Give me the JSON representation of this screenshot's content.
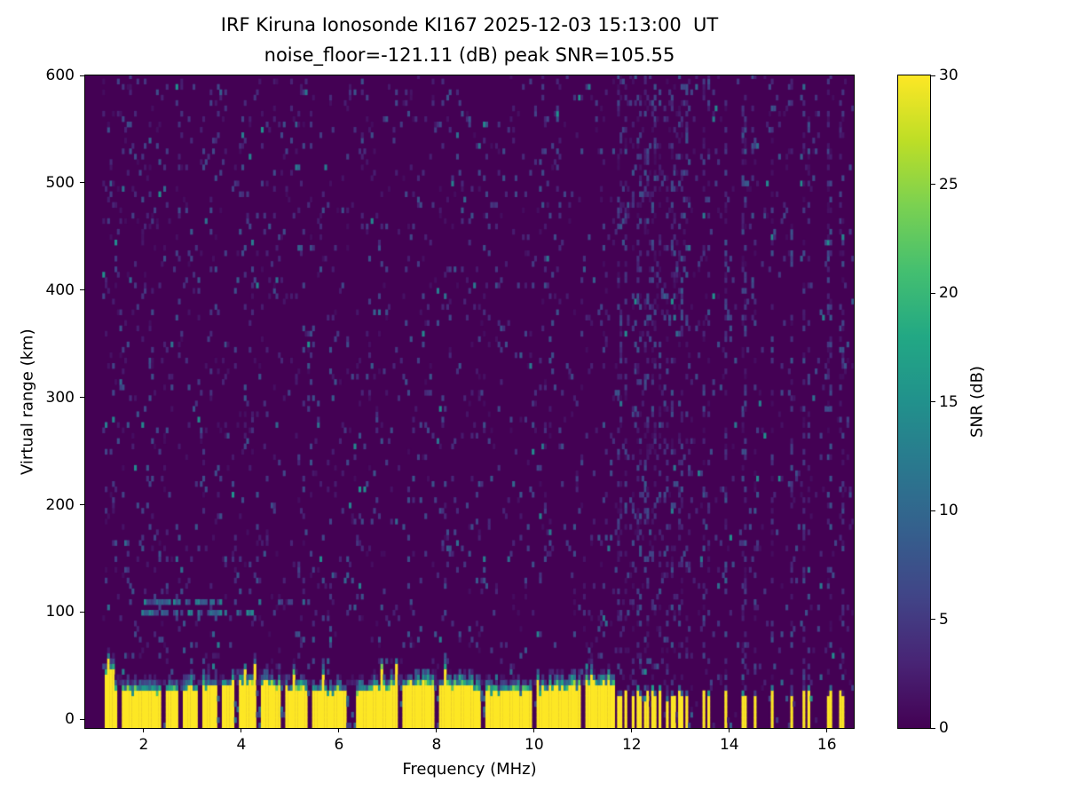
{
  "chart_data": {
    "type": "heatmap",
    "title": "IRF Kiruna Ionosonde KI167 2025-12-03 15:13:00  UT",
    "subtitle": "noise_floor=-121.11 (dB) peak SNR=105.55",
    "observatory": "IRF Kiruna Ionosonde",
    "station": "KI167",
    "timestamp_ut": "2025-12-03 15:13:00",
    "noise_floor_db": -121.11,
    "peak_snr_db": 105.55,
    "xlabel": "Frequency (MHz)",
    "ylabel": "Virtual range (km)",
    "x_range": [
      0.8,
      16.55
    ],
    "y_range": [
      -8,
      600
    ],
    "x_ticks": [
      2,
      4,
      6,
      8,
      10,
      12,
      14,
      16
    ],
    "y_ticks": [
      0,
      100,
      200,
      300,
      400,
      500,
      600
    ],
    "grid": false,
    "colorbar": {
      "label": "SNR (dB)",
      "range": [
        0,
        30
      ],
      "ticks": [
        0,
        5,
        10,
        15,
        20,
        25,
        30
      ],
      "position": "right",
      "colormap": "viridis"
    },
    "colormap_stops": [
      [
        0.0,
        "#440154"
      ],
      [
        0.1,
        "#482475"
      ],
      [
        0.2,
        "#414487"
      ],
      [
        0.3,
        "#355f8d"
      ],
      [
        0.4,
        "#2a788e"
      ],
      [
        0.5,
        "#21918c"
      ],
      [
        0.6,
        "#22a884"
      ],
      [
        0.7,
        "#44bf70"
      ],
      [
        0.8,
        "#7ad151"
      ],
      [
        0.9,
        "#bdde26"
      ],
      [
        1.0,
        "#fde725"
      ]
    ],
    "features": {
      "background_noise": {
        "description": "sparse low-SNR speckle noise over dark viridis background, with faint vertical striping",
        "snr_db_range": [
          0,
          8
        ],
        "density": 0.06
      },
      "ground_return": {
        "description": "saturated near-range return band along the bottom of the plot",
        "x_extent_mhz": [
          1.2,
          11.65
        ],
        "solid_top_km": 30,
        "fringe_top_km": 48,
        "snr_db": 30,
        "notch_frequencies_mhz": [
          1.5,
          2.4,
          2.75,
          3.15,
          3.55,
          3.9,
          4.35,
          4.85,
          5.4,
          7.25,
          8.0,
          8.95,
          10.0,
          11.0
        ],
        "notch_width_mhz": 0.09,
        "wide_notch_mhz": 6.25,
        "wide_notch_width_mhz": 0.18
      },
      "e_layer_echo": {
        "description": "faint horizontal echo trace near 100-110 km virtual range",
        "x_extent_mhz": [
          1.9,
          5.5
        ],
        "strong_x_extent_mhz": [
          1.95,
          3.6
        ],
        "range_km": [
          96,
          112
        ],
        "snr_db_range": [
          5,
          15
        ]
      },
      "sporadic_tx_bars": {
        "description": "intermittent saturated vertical bars above 11.7 MHz with interference speckle stripes at all ranges",
        "x_start_mhz": 11.68,
        "bar_height_km": 28,
        "bar_width_mhz": 0.07,
        "bars_mhz": [
          11.74,
          11.88,
          12.02,
          12.16,
          12.3,
          12.44,
          12.58,
          12.72,
          12.86,
          13.0,
          13.12,
          13.48,
          13.58,
          13.92,
          14.3,
          14.52,
          14.88,
          15.28,
          15.52,
          15.62,
          16.05,
          16.3
        ]
      }
    }
  }
}
